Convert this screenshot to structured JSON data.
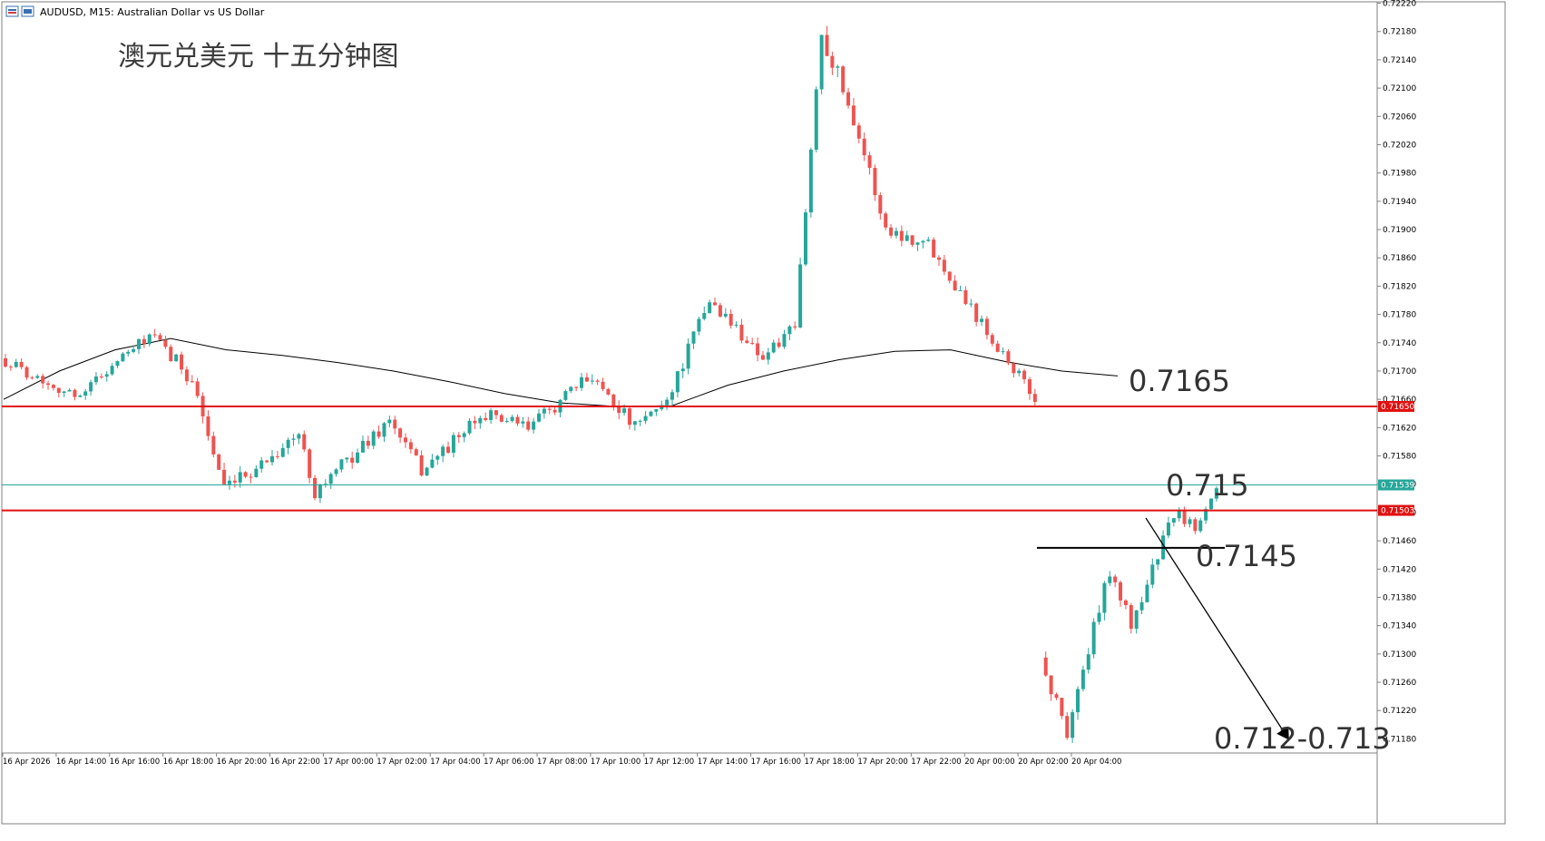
{
  "header": {
    "title": "AUDUSD, M15:  Australian Dollar vs US Dollar",
    "watermark": "澳元兑美元 十五分钟图"
  },
  "annotations": {
    "level_1": "0.7165",
    "level_2": "0.715",
    "level_3": "0.7145",
    "target": "0.712-0.713"
  },
  "colors": {
    "bull": "#26a69a",
    "bear": "#ef5350",
    "level_line": "#e01010",
    "bid_line": "#26a69a",
    "ma_line": "#000000",
    "arrow": "#000000"
  },
  "chart_data": {
    "type": "candlestick",
    "symbol": "AUDUSD",
    "timeframe": "M15",
    "ylim": [
      0.7116,
      0.7222
    ],
    "y_ticks": [
      "0.72220",
      "0.72180",
      "0.72140",
      "0.72100",
      "0.72060",
      "0.72020",
      "0.71980",
      "0.71940",
      "0.71900",
      "0.71860",
      "0.71820",
      "0.71780",
      "0.71740",
      "0.71700",
      "0.71660",
      "0.71620",
      "0.71580",
      "0.71540",
      "0.71500",
      "0.71460",
      "0.71420",
      "0.71380",
      "0.71340",
      "0.71300",
      "0.71260",
      "0.71220",
      "0.71180"
    ],
    "x_ticks": [
      "16 Apr 2026",
      "16 Apr 14:00",
      "16 Apr 16:00",
      "16 Apr 18:00",
      "16 Apr 20:00",
      "16 Apr 22:00",
      "17 Apr 00:00",
      "17 Apr 02:00",
      "17 Apr 04:00",
      "17 Apr 06:00",
      "17 Apr 08:00",
      "17 Apr 10:00",
      "17 Apr 12:00",
      "17 Apr 14:00",
      "17 Apr 16:00",
      "17 Apr 18:00",
      "17 Apr 20:00",
      "17 Apr 22:00",
      "20 Apr 00:00",
      "20 Apr 02:00",
      "20 Apr 04:00"
    ],
    "price_tags": [
      {
        "label": "0.71650",
        "value": 0.7165,
        "color": "#e01010"
      },
      {
        "label": "0.71539",
        "value": 0.71539,
        "color": "#26a69a"
      },
      {
        "label": "0.71503",
        "value": 0.71503,
        "color": "#e01010"
      }
    ],
    "segments": [
      {
        "start": 0.71718,
        "end": 0.71664,
        "count": 14,
        "noise": 8e-05
      },
      {
        "start": 0.71664,
        "end": 0.7175,
        "count": 14,
        "noise": 8e-05
      },
      {
        "start": 0.7175,
        "end": 0.7169,
        "count": 8,
        "noise": 0.00012
      },
      {
        "start": 0.7169,
        "end": 0.7153,
        "count": 6,
        "noise": 0.00012
      },
      {
        "start": 0.7153,
        "end": 0.7161,
        "count": 14,
        "noise": 0.0001
      },
      {
        "start": 0.7161,
        "end": 0.7153,
        "count": 3,
        "noise": 0.0001
      },
      {
        "start": 0.7153,
        "end": 0.7163,
        "count": 14,
        "noise": 0.0001
      },
      {
        "start": 0.7163,
        "end": 0.7156,
        "count": 6,
        "noise": 0.0001
      },
      {
        "start": 0.7156,
        "end": 0.7164,
        "count": 12,
        "noise": 0.0001
      },
      {
        "start": 0.7164,
        "end": 0.7162,
        "count": 8,
        "noise": 8e-05
      },
      {
        "start": 0.7162,
        "end": 0.71695,
        "count": 12,
        "noise": 0.0001
      },
      {
        "start": 0.71695,
        "end": 0.7162,
        "count": 8,
        "noise": 0.0001
      },
      {
        "start": 0.7162,
        "end": 0.7166,
        "count": 6,
        "noise": 8e-05
      },
      {
        "start": 0.7166,
        "end": 0.718,
        "count": 8,
        "noise": 0.00012
      },
      {
        "start": 0.718,
        "end": 0.7172,
        "count": 10,
        "noise": 0.0001
      },
      {
        "start": 0.7172,
        "end": 0.7176,
        "count": 6,
        "noise": 0.0001
      },
      {
        "start": 0.7176,
        "end": 0.7218,
        "count": 5,
        "noise": 0.00015
      },
      {
        "start": 0.7218,
        "end": 0.7206,
        "count": 6,
        "noise": 0.00015
      },
      {
        "start": 0.7206,
        "end": 0.719,
        "count": 6,
        "noise": 0.00012
      },
      {
        "start": 0.719,
        "end": 0.7188,
        "count": 8,
        "noise": 0.0001
      },
      {
        "start": 0.7188,
        "end": 0.7179,
        "count": 8,
        "noise": 0.0001
      },
      {
        "start": 0.7179,
        "end": 0.7166,
        "count": 12,
        "noise": 0.0001
      },
      {
        "start": 0.7129,
        "end": 0.7119,
        "count": 5,
        "noise": 0.00012
      },
      {
        "start": 0.7119,
        "end": 0.7142,
        "count": 8,
        "noise": 0.00012
      },
      {
        "start": 0.7142,
        "end": 0.7134,
        "count": 4,
        "noise": 0.0001
      },
      {
        "start": 0.7134,
        "end": 0.715,
        "count": 8,
        "noise": 0.0001
      },
      {
        "start": 0.715,
        "end": 0.7148,
        "count": 4,
        "noise": 8e-05
      },
      {
        "start": 0.7148,
        "end": 0.71539,
        "count": 4,
        "noise": 8e-05
      }
    ],
    "moving_average": [
      0.7166,
      0.717,
      0.7173,
      0.71746,
      0.7173,
      0.71722,
      0.71712,
      0.717,
      0.71685,
      0.71668,
      0.71655,
      0.7165,
      0.71651,
      0.7168,
      0.717,
      0.71716,
      0.71728,
      0.7173,
      0.71713,
      0.717,
      0.71693
    ],
    "support_resistance": [
      0.7165,
      0.71503
    ],
    "bid": 0.71539,
    "support_segment": 0.7145,
    "projection": {
      "from": 0.715,
      "to": 0.7118
    }
  }
}
